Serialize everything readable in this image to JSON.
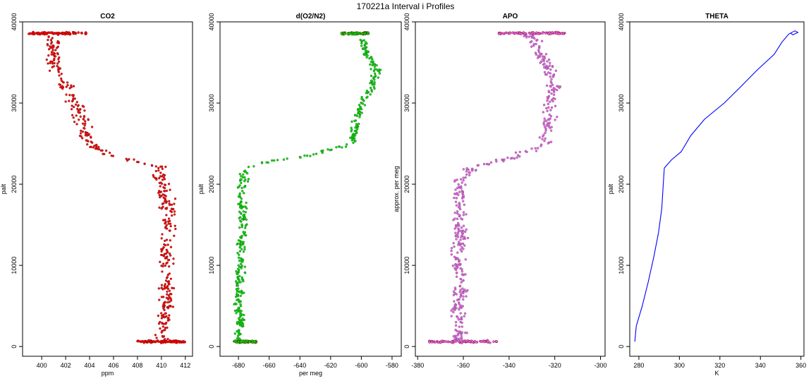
{
  "figure": {
    "title": "170221a   Interval i Profiles"
  },
  "chart_data": [
    {
      "type": "scatter",
      "title": "CO2",
      "xlabel": "ppm",
      "ylabel": "palt",
      "xlim": [
        398.4,
        412.6
      ],
      "ylim": [
        -1200,
        40000
      ],
      "xticks": [
        400,
        402,
        404,
        406,
        408,
        410,
        412
      ],
      "yticks": [
        0,
        10000,
        20000,
        30000,
        40000
      ],
      "color": "#ff0000",
      "profile": [
        {
          "alt": 600,
          "value": 410.0
        },
        {
          "alt": 2000,
          "value": 410.2
        },
        {
          "alt": 4000,
          "value": 410.3
        },
        {
          "alt": 6000,
          "value": 410.5
        },
        {
          "alt": 8000,
          "value": 410.4
        },
        {
          "alt": 10000,
          "value": 410.3
        },
        {
          "alt": 12000,
          "value": 410.4
        },
        {
          "alt": 14000,
          "value": 410.5
        },
        {
          "alt": 16000,
          "value": 410.6
        },
        {
          "alt": 18000,
          "value": 410.4
        },
        {
          "alt": 20000,
          "value": 410.2
        },
        {
          "alt": 22000,
          "value": 410.0
        },
        {
          "alt": 22800,
          "value": 408.0
        },
        {
          "alt": 23500,
          "value": 405.5
        },
        {
          "alt": 25000,
          "value": 404.0
        },
        {
          "alt": 27000,
          "value": 403.6
        },
        {
          "alt": 30000,
          "value": 402.8
        },
        {
          "alt": 32000,
          "value": 402.0
        },
        {
          "alt": 34000,
          "value": 401.3
        },
        {
          "alt": 36000,
          "value": 401.0
        },
        {
          "alt": 38000,
          "value": 400.8
        },
        {
          "alt": 38600,
          "value": 401.0
        }
      ],
      "spread": 0.9,
      "dense_rows": [
        {
          "alt": 38600,
          "from": 398.8,
          "to": 403.8
        },
        {
          "alt": 600,
          "from": 408.0,
          "to": 412.0
        }
      ]
    },
    {
      "type": "scatter",
      "title": "d(O2/N2)",
      "xlabel": "per meg",
      "ylabel": "palt",
      "xlim": [
        -692,
        -574
      ],
      "ylim": [
        -1200,
        40000
      ],
      "xticks": [
        -680,
        -660,
        -640,
        -620,
        -600,
        -580
      ],
      "yticks": [
        0,
        10000,
        20000,
        30000,
        40000
      ],
      "color": "#00e000",
      "profile": [
        {
          "alt": 600,
          "value": -680
        },
        {
          "alt": 2000,
          "value": -679
        },
        {
          "alt": 4000,
          "value": -679
        },
        {
          "alt": 6000,
          "value": -680
        },
        {
          "alt": 8000,
          "value": -679
        },
        {
          "alt": 10000,
          "value": -679
        },
        {
          "alt": 12000,
          "value": -678
        },
        {
          "alt": 14000,
          "value": -678
        },
        {
          "alt": 16000,
          "value": -677
        },
        {
          "alt": 18000,
          "value": -678
        },
        {
          "alt": 20000,
          "value": -678
        },
        {
          "alt": 22000,
          "value": -676
        },
        {
          "alt": 22800,
          "value": -660
        },
        {
          "alt": 23500,
          "value": -635
        },
        {
          "alt": 25000,
          "value": -606
        },
        {
          "alt": 27000,
          "value": -604
        },
        {
          "alt": 30000,
          "value": -600
        },
        {
          "alt": 32000,
          "value": -592
        },
        {
          "alt": 34000,
          "value": -590
        },
        {
          "alt": 36000,
          "value": -596
        },
        {
          "alt": 38000,
          "value": -600
        },
        {
          "alt": 38600,
          "value": -606
        }
      ],
      "spread": 4.5,
      "dense_rows": [
        {
          "alt": 38600,
          "from": -613,
          "to": -595
        },
        {
          "alt": 600,
          "from": -683,
          "to": -668
        }
      ]
    },
    {
      "type": "scatter",
      "title": "APO",
      "xlabel": "",
      "ylabel": "approx. per meg",
      "xlim": [
        -381,
        -298
      ],
      "ylim": [
        -1200,
        40000
      ],
      "xticks": [
        -380,
        -360,
        -340,
        -320,
        -300
      ],
      "yticks": [
        0,
        10000,
        20000,
        30000,
        40000
      ],
      "color": "#ee66ee",
      "profile": [
        {
          "alt": 600,
          "value": -362
        },
        {
          "alt": 2000,
          "value": -361
        },
        {
          "alt": 4000,
          "value": -362
        },
        {
          "alt": 6000,
          "value": -362
        },
        {
          "alt": 8000,
          "value": -361
        },
        {
          "alt": 10000,
          "value": -362
        },
        {
          "alt": 12000,
          "value": -362
        },
        {
          "alt": 14000,
          "value": -361
        },
        {
          "alt": 16000,
          "value": -362
        },
        {
          "alt": 18000,
          "value": -362
        },
        {
          "alt": 20000,
          "value": -362
        },
        {
          "alt": 22000,
          "value": -356
        },
        {
          "alt": 22800,
          "value": -345
        },
        {
          "alt": 23500,
          "value": -336
        },
        {
          "alt": 25000,
          "value": -325
        },
        {
          "alt": 27000,
          "value": -323
        },
        {
          "alt": 30000,
          "value": -322
        },
        {
          "alt": 32000,
          "value": -320
        },
        {
          "alt": 34000,
          "value": -322
        },
        {
          "alt": 36000,
          "value": -326
        },
        {
          "alt": 38000,
          "value": -330
        },
        {
          "alt": 38600,
          "value": -332
        }
      ],
      "spread": 4.5,
      "dense_rows": [
        {
          "alt": 38600,
          "from": -345,
          "to": -315
        },
        {
          "alt": 600,
          "from": -375,
          "to": -345
        }
      ]
    },
    {
      "type": "line",
      "title": "THETA",
      "xlabel": "K",
      "ylabel": "palt",
      "xlim": [
        275.5,
        361.5
      ],
      "ylim": [
        -1200,
        40000
      ],
      "xticks": [
        280,
        300,
        320,
        340,
        360
      ],
      "yticks": [
        0,
        10000,
        20000,
        30000,
        40000
      ],
      "color": "#0000ff",
      "line": [
        {
          "alt": 600,
          "value": 278.0
        },
        {
          "alt": 2500,
          "value": 279.0
        },
        {
          "alt": 5000,
          "value": 282.0
        },
        {
          "alt": 8000,
          "value": 285.0
        },
        {
          "alt": 11000,
          "value": 287.5
        },
        {
          "alt": 14000,
          "value": 289.5
        },
        {
          "alt": 17000,
          "value": 291.0
        },
        {
          "alt": 20000,
          "value": 291.8
        },
        {
          "alt": 22000,
          "value": 292.5
        },
        {
          "alt": 23000,
          "value": 296.0
        },
        {
          "alt": 24000,
          "value": 301.0
        },
        {
          "alt": 26000,
          "value": 305.5
        },
        {
          "alt": 28000,
          "value": 312.0
        },
        {
          "alt": 30000,
          "value": 322.0
        },
        {
          "alt": 32000,
          "value": 330.0
        },
        {
          "alt": 34000,
          "value": 338.0
        },
        {
          "alt": 36000,
          "value": 347.0
        },
        {
          "alt": 37500,
          "value": 351.0
        },
        {
          "alt": 38500,
          "value": 354.0
        },
        {
          "alt": 38900,
          "value": 357.0
        },
        {
          "alt": 38700,
          "value": 358.5
        },
        {
          "alt": 38400,
          "value": 356.0
        },
        {
          "alt": 38600,
          "value": 355.0
        }
      ]
    }
  ]
}
